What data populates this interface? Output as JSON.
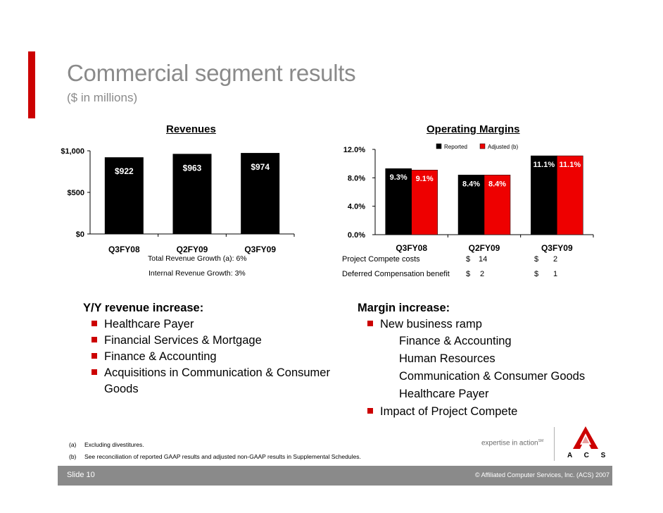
{
  "slide": {
    "title": "Commercial segment results",
    "subtitle": "($ in millions)",
    "number": "Slide 10",
    "copyright": "© Affiliated Computer Services, Inc. (ACS) 2007",
    "accent_color": "#cc0000"
  },
  "revenue_chart": {
    "title": "Revenues",
    "growth_total": "Total Revenue Growth (a): 6%",
    "growth_internal": "Internal Revenue Growth: 3%"
  },
  "margin_chart": {
    "title": "Operating Margins"
  },
  "margin_table": {
    "rows": [
      {
        "label": "Project Compete costs",
        "c1": "$",
        "v1": "14",
        "c2": "$",
        "v2": "2"
      },
      {
        "label": "Deferred Compensation benefit",
        "c1": "$",
        "v1": "2",
        "c2": "$",
        "v2": "1"
      }
    ]
  },
  "left_text": {
    "heading": "Y/Y revenue increase:",
    "bullets": [
      "Healthcare Payer",
      "Financial Services & Mortgage",
      "Finance & Accounting",
      "Acquisitions in Communication & Consumer",
      "Goods"
    ]
  },
  "right_text": {
    "heading": "Margin increase:",
    "bullet1": "New business ramp",
    "sub_items": [
      "Finance & Accounting",
      "Human Resources",
      "Communication & Consumer Goods",
      "Healthcare Payer"
    ],
    "bullet2": "Impact of Project Compete"
  },
  "footnotes": [
    {
      "mark": "(a)",
      "text": "Excluding divestitures."
    },
    {
      "mark": "(b)",
      "text": "See reconciliation of reported GAAP results and adjusted non-GAAP results in Supplemental Schedules."
    }
  ],
  "branding": {
    "tagline": "expertise in action",
    "tagline_mark": "SM",
    "logo_letters": "A  C  S"
  },
  "chart_data": [
    {
      "type": "bar",
      "title": "Revenues",
      "categories": [
        "Q3FY08",
        "Q2FY09",
        "Q3FY09"
      ],
      "values": [
        922,
        963,
        974
      ],
      "value_labels": [
        "$922",
        "$963",
        "$974"
      ],
      "ylim": [
        0,
        1000
      ],
      "yticks": [
        0,
        500,
        1000
      ],
      "ytick_labels": [
        "$0",
        "$500",
        "$1,000"
      ],
      "bar_color": "#000000"
    },
    {
      "type": "bar",
      "title": "Operating Margins",
      "categories": [
        "Q3FY08",
        "Q2FY09",
        "Q3FY09"
      ],
      "series": [
        {
          "name": "Reported",
          "values": [
            9.3,
            8.4,
            11.1
          ],
          "labels": [
            "9.3%",
            "8.4%",
            "11.1%"
          ],
          "color": "#000000"
        },
        {
          "name": "Adjusted (b)",
          "values": [
            9.1,
            8.4,
            11.1
          ],
          "labels": [
            "9.1%",
            "8.4%",
            "11.1%"
          ],
          "color": "#ee0000"
        }
      ],
      "ylim": [
        0,
        12
      ],
      "yticks": [
        0,
        4,
        8,
        12
      ],
      "ytick_labels": [
        "0.0%",
        "4.0%",
        "8.0%",
        "12.0%"
      ],
      "legend": "top-right"
    }
  ]
}
